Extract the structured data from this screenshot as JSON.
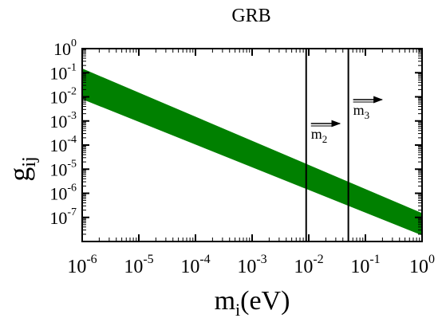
{
  "chart_data": {
    "type": "area",
    "title": "GRB",
    "xlabel": {
      "base": "m",
      "sub": "i",
      "rest": "(eV)"
    },
    "ylabel": {
      "base": "g",
      "sub": "ij"
    },
    "xscale": "log",
    "yscale": "log",
    "xlim": [
      1e-06,
      1
    ],
    "ylim": [
      1e-08,
      1
    ],
    "x_ticks": [
      {
        "base": "10",
        "exp": "-6"
      },
      {
        "base": "10",
        "exp": "-5"
      },
      {
        "base": "10",
        "exp": "-4"
      },
      {
        "base": "10",
        "exp": "-3"
      },
      {
        "base": "10",
        "exp": "-2"
      },
      {
        "base": "10",
        "exp": "-1"
      },
      {
        "base": "10",
        "exp": "0"
      }
    ],
    "y_ticks": [
      {
        "base": "10",
        "exp": "-7"
      },
      {
        "base": "10",
        "exp": "-6"
      },
      {
        "base": "10",
        "exp": "-5"
      },
      {
        "base": "10",
        "exp": "-4"
      },
      {
        "base": "10",
        "exp": "-3"
      },
      {
        "base": "10",
        "exp": "-2"
      },
      {
        "base": "10",
        "exp": "-1"
      },
      {
        "base": "10",
        "exp": "0"
      }
    ],
    "band": {
      "color": "#008000",
      "x": [
        1e-06,
        1
      ],
      "upper": [
        0.15,
        1.5e-07
      ],
      "lower": [
        0.008,
        1.8e-08
      ]
    },
    "vlines": [
      {
        "x": 0.009,
        "label": {
          "base": "m",
          "sub": "2"
        }
      },
      {
        "x": 0.05,
        "label": {
          "base": "m",
          "sub": "3"
        }
      }
    ],
    "grid": false,
    "legend": "none"
  }
}
